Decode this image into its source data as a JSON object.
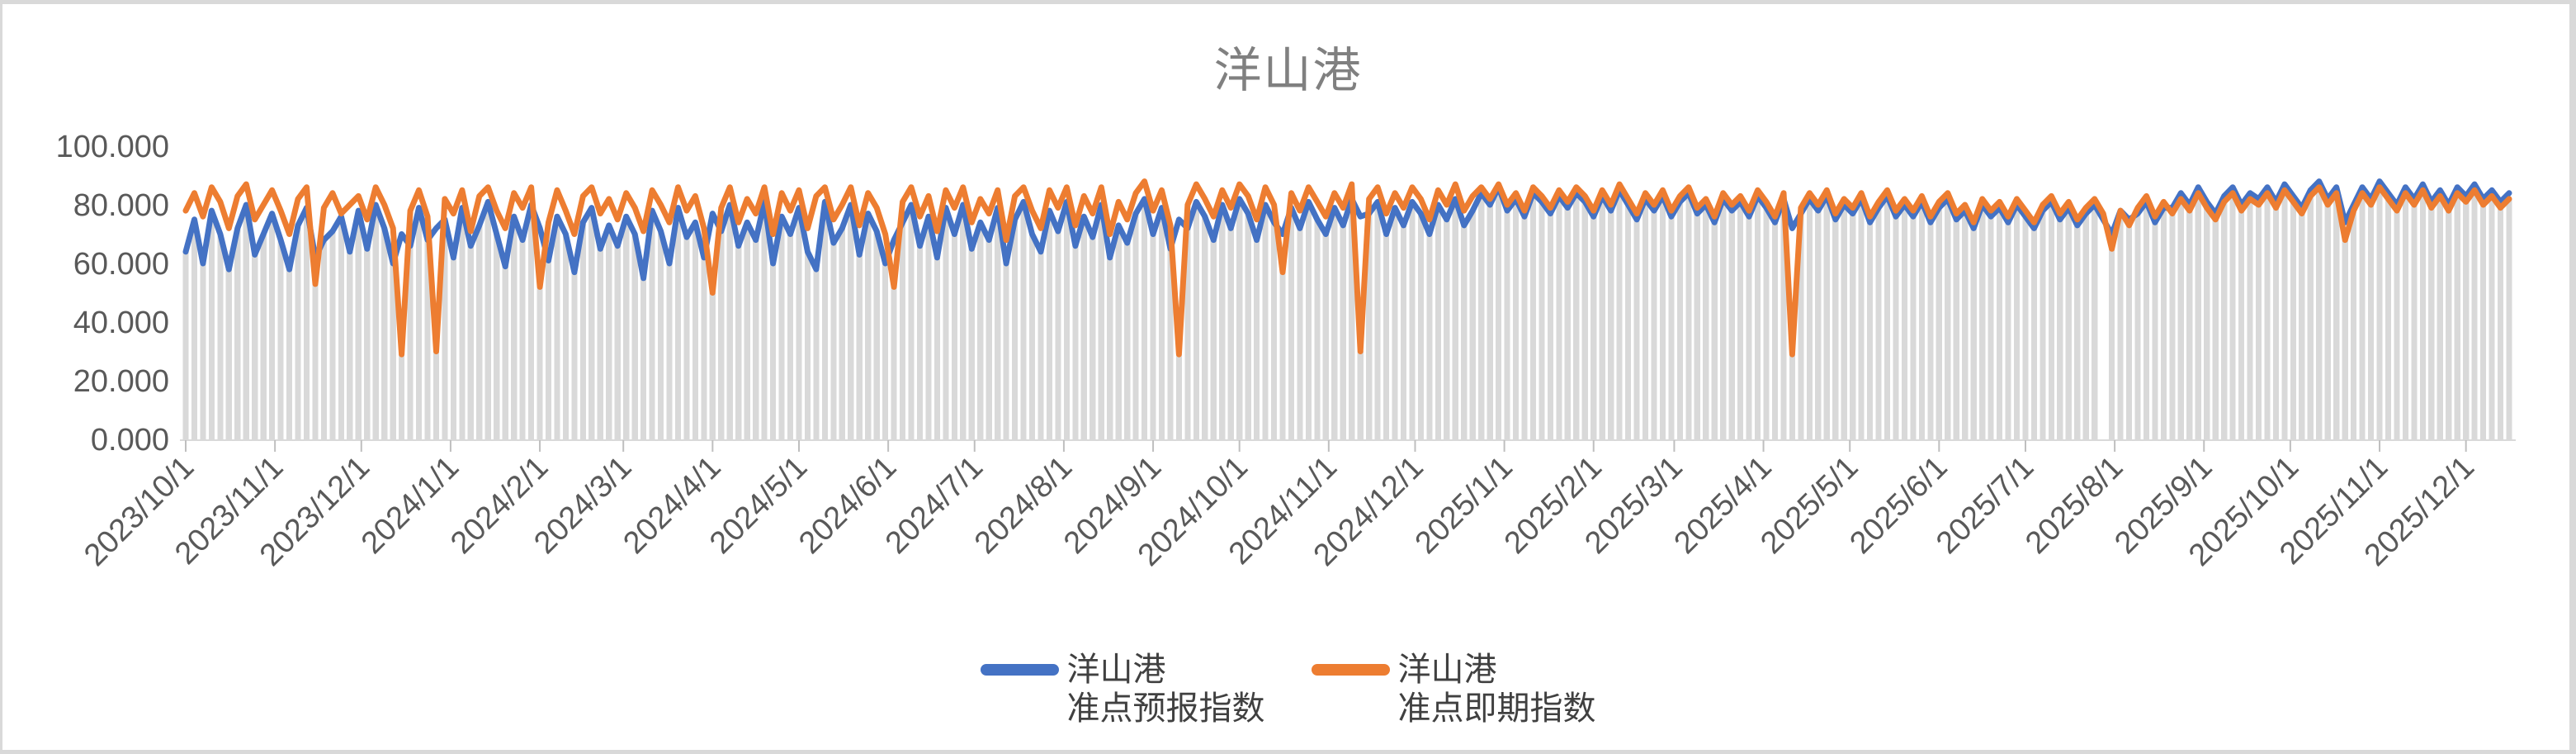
{
  "page": {
    "title": "洋山港"
  },
  "colors": {
    "forecast_line": "#4472C4",
    "spot_line": "#ED7D31",
    "background_bar": "#D9D9D9",
    "axis_line": "#D9D9D9",
    "tick_mark": "#BFBFBF",
    "axis_label": "#595959",
    "title_text": "#808080",
    "legend_text": "#404040",
    "screen_edge": "#D9D9D9"
  },
  "chart_data": {
    "type": "line",
    "title": "洋山港",
    "xlabel": "",
    "ylabel": "",
    "ylim": [
      0,
      100
    ],
    "grid": false,
    "legend_position": "bottom",
    "start_date": "2023/10/1",
    "interval_days": 3,
    "y_ticks": {
      "values": [
        0,
        20,
        40,
        60,
        80,
        100
      ],
      "labels": [
        "0.000",
        "20.000",
        "40.000",
        "60.000",
        "80.000",
        "100.000"
      ]
    },
    "x_ticks": [
      {
        "label": "2023/10/1",
        "day": 0
      },
      {
        "label": "2023/11/1",
        "day": 31
      },
      {
        "label": "2023/12/1",
        "day": 61
      },
      {
        "label": "2024/1/1",
        "day": 92
      },
      {
        "label": "2024/2/1",
        "day": 123
      },
      {
        "label": "2024/3/1",
        "day": 152
      },
      {
        "label": "2024/4/1",
        "day": 183
      },
      {
        "label": "2024/5/1",
        "day": 213
      },
      {
        "label": "2024/6/1",
        "day": 244
      },
      {
        "label": "2024/7/1",
        "day": 274
      },
      {
        "label": "2024/8/1",
        "day": 305
      },
      {
        "label": "2024/9/1",
        "day": 336
      },
      {
        "label": "2024/10/1",
        "day": 366
      },
      {
        "label": "2024/11/1",
        "day": 397
      },
      {
        "label": "2024/12/1",
        "day": 427
      },
      {
        "label": "2025/1/1",
        "day": 458
      },
      {
        "label": "2025/2/1",
        "day": 489
      },
      {
        "label": "2025/3/1",
        "day": 517
      },
      {
        "label": "2025/4/1",
        "day": 548
      },
      {
        "label": "2025/5/1",
        "day": 578
      },
      {
        "label": "2025/6/1",
        "day": 609
      },
      {
        "label": "2025/7/1",
        "day": 639
      },
      {
        "label": "2025/8/1",
        "day": 670
      },
      {
        "label": "2025/9/1",
        "day": 701
      },
      {
        "label": "2025/10/1",
        "day": 731
      },
      {
        "label": "2025/11/1",
        "day": 762
      },
      {
        "label": "2025/12/1",
        "day": 792
      }
    ],
    "background_bars": {
      "derive": "min_of_series",
      "missing_indices": [
        222
      ]
    },
    "series": [
      {
        "name": "洋山港 准点预报指数",
        "legend_line1": "洋山港",
        "legend_line2": "准点预报指数",
        "color": "#4472C4",
        "values": [
          64,
          75,
          60,
          78,
          70,
          58,
          72,
          80,
          63,
          70,
          77,
          68,
          58,
          73,
          79,
          62,
          68,
          71,
          76,
          64,
          78,
          65,
          80,
          72,
          60,
          70,
          66,
          79,
          68,
          72,
          75,
          62,
          79,
          66,
          73,
          81,
          70,
          59,
          76,
          68,
          80,
          72,
          61,
          76,
          70,
          57,
          74,
          79,
          65,
          73,
          66,
          76,
          70,
          55,
          78,
          71,
          60,
          79,
          69,
          74,
          62,
          77,
          71,
          80,
          66,
          74,
          68,
          81,
          60,
          76,
          70,
          79,
          64,
          58,
          81,
          67,
          72,
          80,
          63,
          77,
          71,
          60,
          68,
          74,
          80,
          66,
          76,
          62,
          79,
          70,
          80,
          65,
          74,
          68,
          79,
          60,
          75,
          81,
          70,
          64,
          78,
          71,
          81,
          66,
          76,
          69,
          80,
          62,
          73,
          67,
          77,
          82,
          70,
          79,
          65,
          75,
          72,
          81,
          76,
          68,
          80,
          72,
          82,
          77,
          68,
          80,
          74,
          70,
          79,
          72,
          81,
          75,
          70,
          79,
          73,
          82,
          76,
          77,
          81,
          70,
          79,
          73,
          81,
          77,
          70,
          80,
          75,
          82,
          73,
          78,
          84,
          80,
          86,
          78,
          82,
          76,
          84,
          81,
          77,
          83,
          79,
          84,
          81,
          76,
          83,
          78,
          85,
          80,
          75,
          82,
          78,
          83,
          76,
          81,
          84,
          77,
          80,
          74,
          82,
          78,
          81,
          76,
          83,
          79,
          74,
          82,
          72,
          77,
          82,
          78,
          83,
          75,
          80,
          77,
          82,
          74,
          79,
          83,
          76,
          80,
          76,
          81,
          74,
          79,
          82,
          75,
          78,
          72,
          80,
          76,
          79,
          74,
          80,
          76,
          72,
          78,
          81,
          75,
          79,
          73,
          77,
          80,
          75,
          70,
          78,
          75,
          77,
          81,
          74,
          79,
          79,
          84,
          80,
          86,
          81,
          77,
          83,
          86,
          80,
          84,
          82,
          86,
          81,
          87,
          83,
          79,
          85,
          88,
          82,
          86,
          74,
          80,
          86,
          82,
          88,
          84,
          80,
          86,
          82,
          87,
          81,
          85,
          80,
          86,
          83,
          87,
          82,
          85,
          81,
          84
        ]
      },
      {
        "name": "洋山港 准点即期指数",
        "legend_line1": "洋山港",
        "legend_line2": "准点即期指数",
        "color": "#ED7D31",
        "values": [
          78,
          84,
          76,
          86,
          81,
          72,
          83,
          87,
          75,
          80,
          85,
          78,
          70,
          82,
          86,
          53,
          79,
          84,
          77,
          80,
          83,
          75,
          86,
          80,
          72,
          29,
          78,
          85,
          76,
          30,
          82,
          77,
          85,
          71,
          83,
          86,
          78,
          72,
          84,
          79,
          86,
          52,
          74,
          85,
          78,
          70,
          83,
          86,
          77,
          82,
          75,
          84,
          79,
          71,
          85,
          80,
          74,
          86,
          78,
          83,
          72,
          50,
          79,
          86,
          74,
          82,
          77,
          86,
          70,
          84,
          78,
          85,
          72,
          83,
          86,
          75,
          80,
          86,
          73,
          84,
          79,
          70,
          52,
          81,
          86,
          76,
          83,
          71,
          85,
          79,
          86,
          74,
          82,
          77,
          85,
          68,
          83,
          86,
          78,
          72,
          85,
          79,
          86,
          73,
          83,
          77,
          86,
          70,
          81,
          75,
          84,
          88,
          78,
          85,
          73,
          29,
          80,
          87,
          82,
          76,
          85,
          79,
          87,
          83,
          75,
          86,
          80,
          57,
          84,
          78,
          86,
          81,
          76,
          84,
          79,
          87,
          30,
          82,
          86,
          77,
          84,
          79,
          86,
          82,
          75,
          85,
          80,
          87,
          78,
          83,
          86,
          82,
          87,
          80,
          84,
          78,
          86,
          83,
          79,
          85,
          81,
          86,
          83,
          78,
          85,
          80,
          87,
          82,
          77,
          84,
          80,
          85,
          78,
          83,
          86,
          79,
          82,
          76,
          84,
          80,
          83,
          78,
          85,
          81,
          76,
          84,
          29,
          79,
          84,
          80,
          85,
          77,
          82,
          79,
          84,
          76,
          81,
          85,
          78,
          82,
          78,
          83,
          76,
          81,
          84,
          77,
          80,
          74,
          82,
          78,
          81,
          76,
          82,
          78,
          74,
          80,
          83,
          77,
          81,
          75,
          79,
          82,
          77,
          65,
          78,
          73,
          79,
          83,
          76,
          81,
          77,
          82,
          78,
          84,
          79,
          75,
          81,
          84,
          78,
          82,
          80,
          84,
          79,
          85,
          81,
          77,
          83,
          86,
          80,
          84,
          68,
          78,
          84,
          80,
          86,
          82,
          78,
          84,
          80,
          85,
          79,
          83,
          78,
          84,
          81,
          85,
          80,
          83,
          79,
          82
        ]
      }
    ]
  }
}
